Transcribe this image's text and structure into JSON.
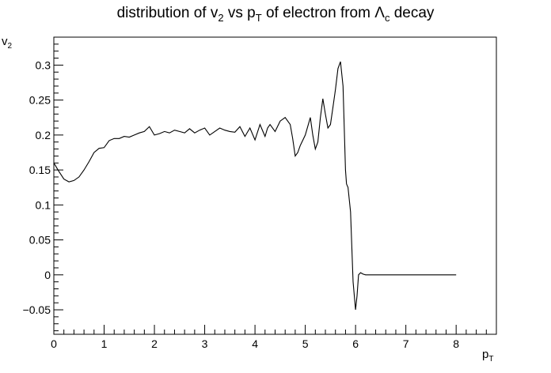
{
  "chart_data": {
    "type": "line",
    "title": {
      "part1": "distribution of v",
      "sub1": "2",
      "part2": " vs p",
      "sub2": "T",
      "part3": " of electron from ",
      "greek": "Λ",
      "sub3": "c",
      "part4": " decay"
    },
    "xlabel": {
      "main": "p",
      "sub": "T"
    },
    "ylabel": {
      "main": "v",
      "sub": "2"
    },
    "xlim": [
      0,
      8.8
    ],
    "ylim": [
      -0.085,
      0.34
    ],
    "xticks": [
      0,
      1,
      2,
      3,
      4,
      5,
      6,
      7,
      8
    ],
    "xtick_labels": [
      "0",
      "1",
      "2",
      "3",
      "4",
      "5",
      "6",
      "7",
      "8"
    ],
    "yticks": [
      -0.05,
      0,
      0.05,
      0.1,
      0.15,
      0.2,
      0.25,
      0.3
    ],
    "ytick_labels": [
      "−0.05",
      "0",
      "0.05",
      "0.1",
      "0.15",
      "0.2",
      "0.25",
      "0.3"
    ],
    "grid": false,
    "legend": "none",
    "series": [
      {
        "x": [
          0,
          0.1,
          0.2,
          0.3,
          0.4,
          0.5,
          0.6,
          0.7,
          0.8,
          0.9,
          1.0,
          1.1,
          1.2,
          1.3,
          1.4,
          1.5,
          1.6,
          1.7,
          1.8,
          1.9,
          2.0,
          2.1,
          2.2,
          2.3,
          2.4,
          2.5,
          2.6,
          2.7,
          2.8,
          2.9,
          3.0,
          3.1,
          3.2,
          3.3,
          3.4,
          3.5,
          3.6,
          3.7,
          3.8,
          3.9,
          4.0,
          4.1,
          4.2,
          4.25,
          4.3,
          4.4,
          4.5,
          4.6,
          4.7,
          4.75,
          4.8,
          4.85,
          4.9,
          5.0,
          5.1,
          5.15,
          5.2,
          5.25,
          5.3,
          5.35,
          5.4,
          5.45,
          5.5,
          5.55,
          5.6,
          5.65,
          5.7,
          5.75,
          5.8,
          5.82,
          5.85,
          5.9,
          5.95,
          6.0,
          6.03,
          6.06,
          6.1,
          6.15,
          6.2,
          6.3,
          6.5,
          7.0,
          7.5,
          8.0
        ],
        "y": [
          0.16,
          0.148,
          0.137,
          0.133,
          0.135,
          0.14,
          0.15,
          0.162,
          0.175,
          0.181,
          0.182,
          0.192,
          0.195,
          0.195,
          0.198,
          0.197,
          0.2,
          0.203,
          0.205,
          0.212,
          0.2,
          0.202,
          0.205,
          0.203,
          0.207,
          0.205,
          0.203,
          0.209,
          0.203,
          0.207,
          0.21,
          0.2,
          0.205,
          0.21,
          0.207,
          0.205,
          0.204,
          0.212,
          0.198,
          0.21,
          0.193,
          0.215,
          0.198,
          0.21,
          0.215,
          0.205,
          0.22,
          0.225,
          0.215,
          0.195,
          0.17,
          0.175,
          0.185,
          0.2,
          0.225,
          0.2,
          0.18,
          0.19,
          0.225,
          0.252,
          0.23,
          0.21,
          0.215,
          0.24,
          0.265,
          0.295,
          0.305,
          0.27,
          0.15,
          0.13,
          0.125,
          0.09,
          -0.01,
          -0.05,
          -0.03,
          0.0,
          0.003,
          0.001,
          0.0,
          0.0,
          0.0,
          0.0,
          0.0,
          0.0
        ]
      }
    ]
  }
}
